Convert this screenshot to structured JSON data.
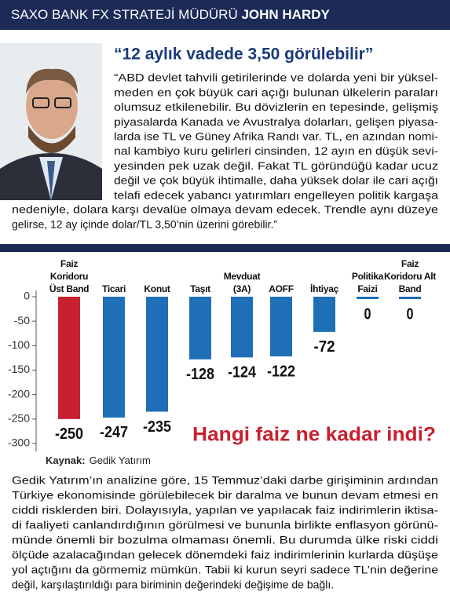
{
  "header": {
    "prefix": "SAXO BANK FX STRATEJİ MÜDÜRÜ",
    "name": "JOHN HARDY"
  },
  "quote": {
    "title": "“12 aylık vadede 3,50 görülebilir”",
    "lines": [
      "“ABD devlet tahvili getirilerinde ve dolarda yeni bir yüksel-",
      "meden en çok büyük cari açığı bulunan ülkelerin paraları",
      "olumsuz etkilenebilir. Bu dövizlerin en tepesinde, gelişmiş",
      "piyasalarda Kanada ve Avustralya dolarları, gelişen piyasa-",
      "larda ise TL ve Güney Afrika Randı var. TL, en azından nomi-",
      "nal kambiyo kuru gelirleri cinsinden, 12 ayın en düşük sevi-",
      "yesinden pek uzak değil. Fakat TL göründüğü kadar ucuz",
      "değil ve çok büyük ihtimalle, daha yüksek dolar ile cari açığı",
      "telafi edecek yabancı yatırımları engelleyen politik kargaşa",
      "nedeniyle, dolara karşı devalüe olmaya devam edecek. Trendle aynı düzeye",
      "gelirse, 12 ay içinde dolar/TL 3,50’nin üzerini görebilir.”"
    ]
  },
  "chart_data": {
    "type": "bar",
    "title": "Hangi faiz ne kadar indi?",
    "categories": [
      "Faiz Koridoru Üst Band",
      "Ticari",
      "Konut",
      "Taşıt",
      "Mevduat (3A)",
      "AOFF",
      "İhtiyaç",
      "Politika Faizi",
      "Faiz Koridoru Alt Band"
    ],
    "values": [
      -250,
      -247,
      -235,
      -128,
      -124,
      -122,
      -72,
      0,
      0
    ],
    "color": "#1e6fb8",
    "highlight_color": "#c8202f",
    "ylim": [
      0,
      -300
    ],
    "yticks": [
      0,
      -50,
      -100,
      -150,
      -200,
      -250,
      -300
    ],
    "source_label": "Kaynak:",
    "source": "Gedik Yatırım"
  },
  "body": {
    "lines": [
      "Gedik Yatırım’ın analizine göre, 15 Temmuz’daki darbe girişiminin ardından",
      "Türkiye ekonomisinde görülebilecek bir daralma ve bunun devam etmesi en",
      "ciddi risklerden biri. Dolayısıyla, yapılan ve yapılacak faiz indirimlerin iktisa-",
      "di faaliyeti canlandırdığının görülmesi ve bununla birlikte enflasyon görünü-",
      "münde önemli bir bozulma olmaması önemli. Bu durumda ülke riski ciddi",
      "ölçüde azalacağından gelecek dönemdeki faiz indirimlerinin kurlarda düşüşe",
      "yol açtığını da görmemiz mümkün. Tabii ki kurun seyri sadece TL’nin değerine",
      "değil, karşılaştırıldığı para biriminin değerindeki değişime de bağlı."
    ]
  }
}
